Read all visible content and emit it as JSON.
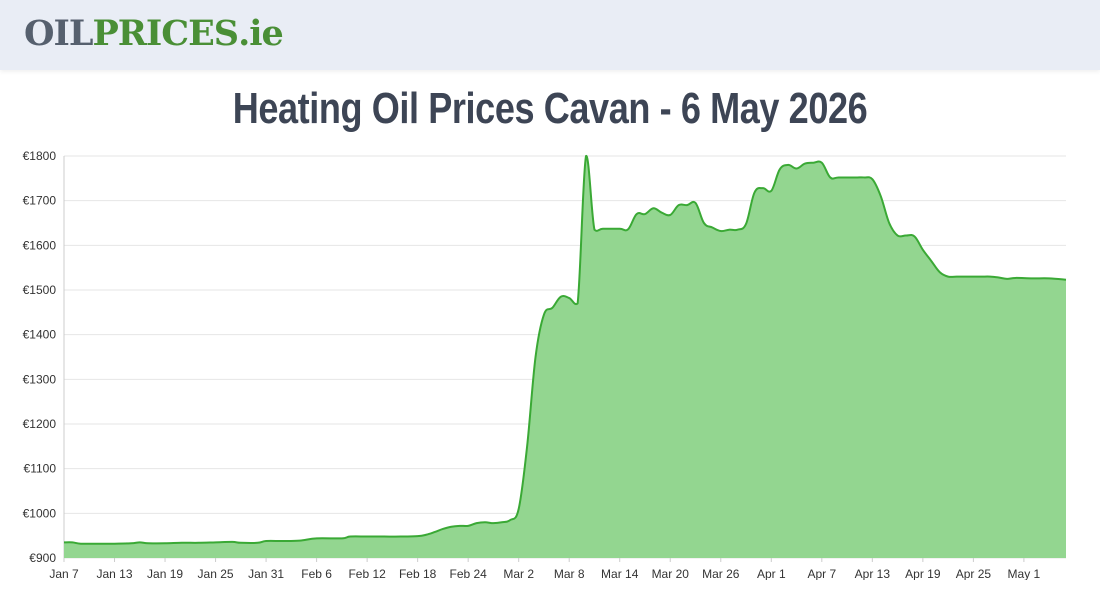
{
  "header": {
    "logo_part1": "OIL",
    "logo_part2": "PRICES",
    "logo_part3": ".ie"
  },
  "page": {
    "title": "Heating Oil Prices Cavan - 6 May 2026"
  },
  "colors": {
    "header_bg": "#e9edf5",
    "logo_dark": "#56606e",
    "logo_green": "#4a8f36",
    "title": "#3d4555",
    "line": "#3aa935",
    "fill": "#93d690",
    "grid": "#e6e6e6"
  },
  "chart_data": {
    "type": "area",
    "title": "",
    "xlabel": "",
    "ylabel": "",
    "ylim": [
      900,
      1800
    ],
    "y_ticks": [
      "€900",
      "€1000",
      "€1100",
      "€1200",
      "€1300",
      "€1400",
      "€1500",
      "€1600",
      "€1700",
      "€1800"
    ],
    "y_tick_values": [
      900,
      1000,
      1100,
      1200,
      1300,
      1400,
      1500,
      1600,
      1700,
      1800
    ],
    "x_ticks": [
      "Jan 7",
      "Jan 13",
      "Jan 19",
      "Jan 25",
      "Jan 31",
      "Feb 6",
      "Feb 12",
      "Feb 18",
      "Feb 24",
      "Mar 2",
      "Mar 8",
      "Mar 14",
      "Mar 20",
      "Mar 26",
      "Apr 1",
      "Apr 7",
      "Apr 13",
      "Apr 19",
      "Apr 25",
      "May 1"
    ],
    "x_tick_days": [
      0,
      6,
      12,
      18,
      24,
      30,
      36,
      42,
      48,
      54,
      60,
      66,
      72,
      78,
      84,
      90,
      96,
      102,
      108,
      114
    ],
    "x_range_days": [
      0,
      119
    ],
    "grid": true,
    "legend": "none",
    "series": [
      {
        "points": [
          [
            0,
            935
          ],
          [
            1,
            935
          ],
          [
            2,
            932
          ],
          [
            4,
            932
          ],
          [
            6,
            932
          ],
          [
            8,
            933
          ],
          [
            9,
            935
          ],
          [
            10,
            933
          ],
          [
            12,
            933
          ],
          [
            14,
            934
          ],
          [
            16,
            934
          ],
          [
            18,
            935
          ],
          [
            20,
            936
          ],
          [
            21,
            934
          ],
          [
            23,
            934
          ],
          [
            24,
            938
          ],
          [
            26,
            938
          ],
          [
            28,
            939
          ],
          [
            30,
            944
          ],
          [
            33,
            944
          ],
          [
            34,
            948
          ],
          [
            36,
            948
          ],
          [
            38,
            948
          ],
          [
            40,
            948
          ],
          [
            42,
            949
          ],
          [
            43,
            952
          ],
          [
            44,
            958
          ],
          [
            45,
            965
          ],
          [
            46,
            970
          ],
          [
            47,
            972
          ],
          [
            48,
            972
          ],
          [
            49,
            978
          ],
          [
            50,
            980
          ],
          [
            51,
            978
          ],
          [
            52,
            980
          ],
          [
            53,
            985
          ],
          [
            54,
            1010
          ],
          [
            55,
            1150
          ],
          [
            56,
            1350
          ],
          [
            57,
            1445
          ],
          [
            58,
            1460
          ],
          [
            59,
            1485
          ],
          [
            60,
            1482
          ],
          [
            61,
            1470
          ],
          [
            62,
            1800
          ],
          [
            63,
            1635
          ],
          [
            64,
            1637
          ],
          [
            66,
            1637
          ],
          [
            67,
            1636
          ],
          [
            68,
            1670
          ],
          [
            69,
            1670
          ],
          [
            70,
            1683
          ],
          [
            71,
            1673
          ],
          [
            72,
            1668
          ],
          [
            73,
            1690
          ],
          [
            74,
            1690
          ],
          [
            75,
            1695
          ],
          [
            76,
            1650
          ],
          [
            77,
            1640
          ],
          [
            78,
            1632
          ],
          [
            79,
            1635
          ],
          [
            80,
            1635
          ],
          [
            81,
            1648
          ],
          [
            82,
            1718
          ],
          [
            83,
            1728
          ],
          [
            84,
            1722
          ],
          [
            85,
            1770
          ],
          [
            86,
            1780
          ],
          [
            87,
            1772
          ],
          [
            88,
            1783
          ],
          [
            89,
            1785
          ],
          [
            90,
            1785
          ],
          [
            91,
            1752
          ],
          [
            92,
            1752
          ],
          [
            94,
            1752
          ],
          [
            95,
            1752
          ],
          [
            96,
            1748
          ],
          [
            97,
            1710
          ],
          [
            98,
            1650
          ],
          [
            99,
            1622
          ],
          [
            100,
            1622
          ],
          [
            101,
            1620
          ],
          [
            102,
            1590
          ],
          [
            103,
            1565
          ],
          [
            104,
            1540
          ],
          [
            105,
            1530
          ],
          [
            106,
            1530
          ],
          [
            108,
            1530
          ],
          [
            109,
            1530
          ],
          [
            110,
            1530
          ],
          [
            111,
            1528
          ],
          [
            112,
            1525
          ],
          [
            113,
            1527
          ],
          [
            115,
            1526
          ],
          [
            117,
            1526
          ],
          [
            119,
            1523
          ]
        ]
      }
    ]
  }
}
